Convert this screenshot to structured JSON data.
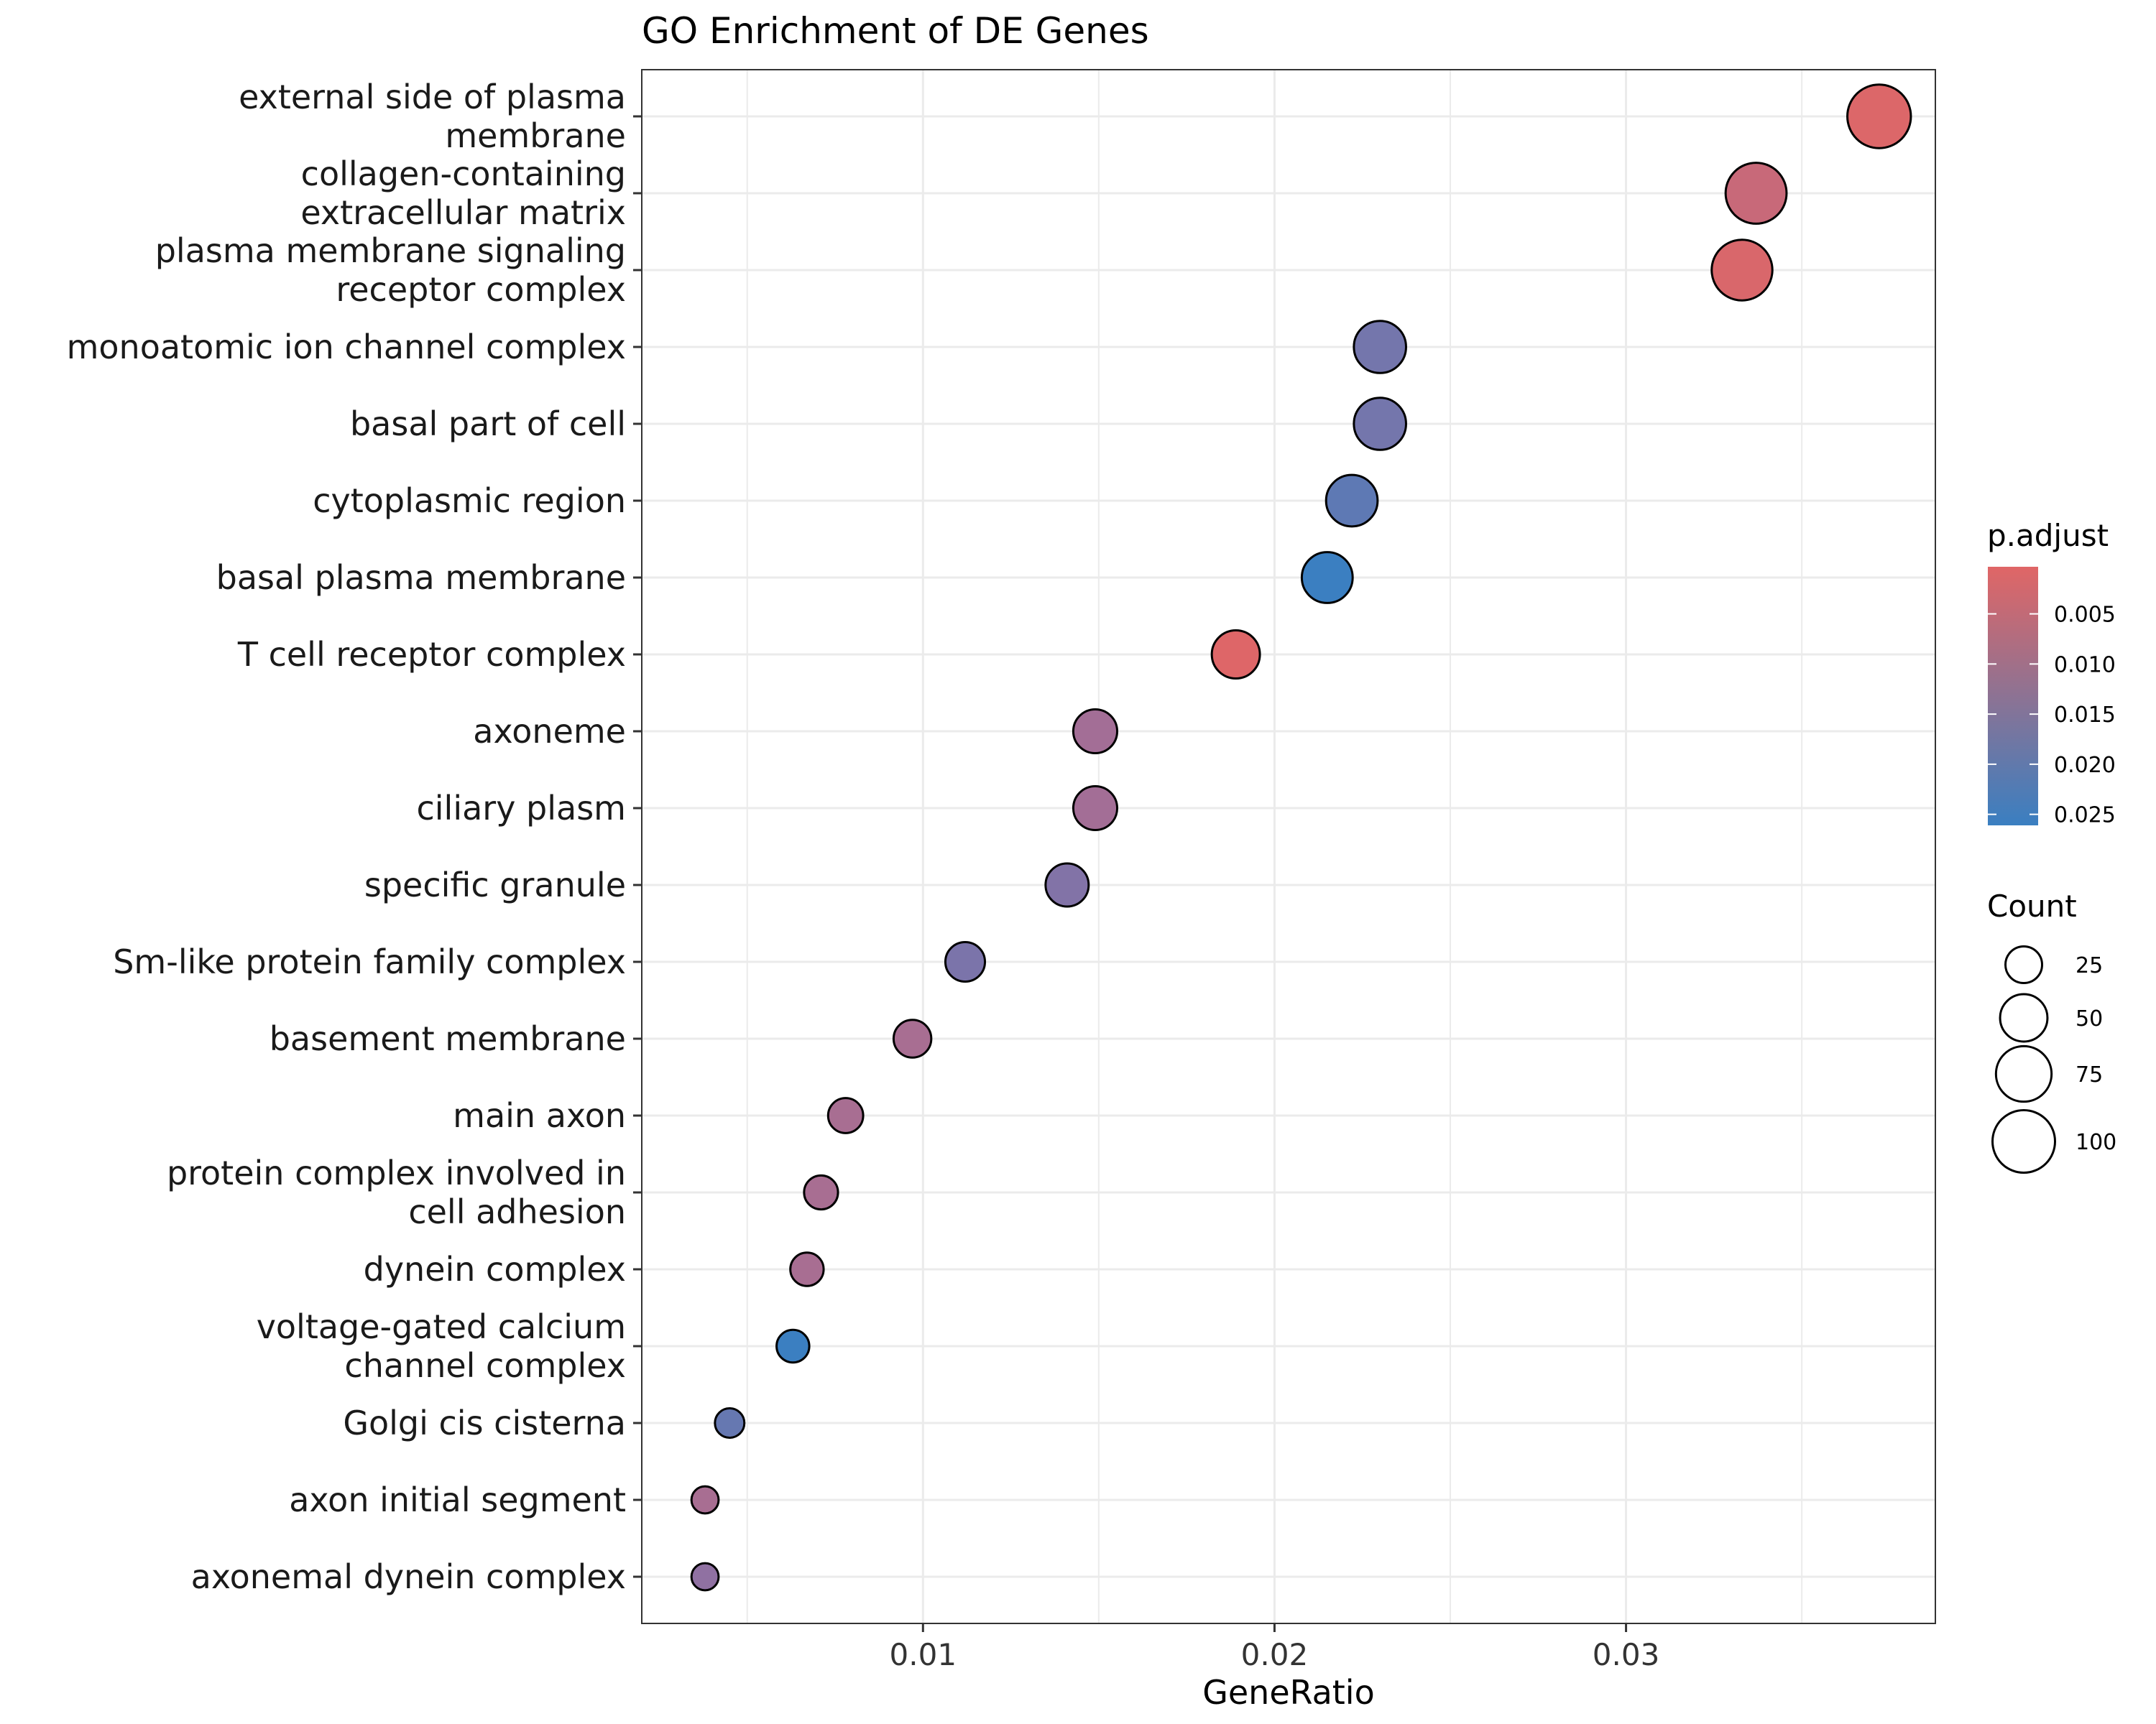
{
  "chart_data": {
    "type": "scatter",
    "title": "GO Enrichment of DE Genes",
    "xlabel": "GeneRatio",
    "ylabel": "",
    "xlim": [
      0.002,
      0.0388
    ],
    "x_ticks": [
      {
        "value": 0.01,
        "label": "0.01"
      },
      {
        "value": 0.02,
        "label": "0.02"
      },
      {
        "value": 0.03,
        "label": "0.03"
      }
    ],
    "grid": true,
    "color_legend": {
      "title": "p.adjust",
      "domain": [
        0.0003,
        0.0261
      ],
      "low_color": "#e06666",
      "high_color": "#3a7fc1",
      "ticks": [
        {
          "value": 0.005,
          "label": "0.005"
        },
        {
          "value": 0.01,
          "label": "0.010"
        },
        {
          "value": 0.015,
          "label": "0.015"
        },
        {
          "value": 0.02,
          "label": "0.020"
        },
        {
          "value": 0.025,
          "label": "0.025"
        }
      ]
    },
    "size_legend": {
      "title": "Count",
      "entries": [
        {
          "value": 25,
          "label": "25"
        },
        {
          "value": 50,
          "label": "50"
        },
        {
          "value": 75,
          "label": "75"
        },
        {
          "value": 100,
          "label": "100"
        }
      ]
    },
    "points": [
      {
        "label": [
          "external side of plasma",
          "membrane"
        ],
        "gene_ratio": 0.0372,
        "count": 104,
        "p_adjust": 0.001
      },
      {
        "label": [
          "collagen-containing",
          "extracellular matrix"
        ],
        "gene_ratio": 0.0337,
        "count": 94,
        "p_adjust": 0.0045
      },
      {
        "label": [
          "plasma membrane signaling",
          "receptor complex"
        ],
        "gene_ratio": 0.0333,
        "count": 93,
        "p_adjust": 0.0015
      },
      {
        "label": [
          "monoatomic ion channel complex"
        ],
        "gene_ratio": 0.023,
        "count": 64,
        "p_adjust": 0.018
      },
      {
        "label": [
          "basal part of cell"
        ],
        "gene_ratio": 0.023,
        "count": 64,
        "p_adjust": 0.018
      },
      {
        "label": [
          "cytoplasmic region"
        ],
        "gene_ratio": 0.0222,
        "count": 62,
        "p_adjust": 0.021
      },
      {
        "label": [
          "basal plasma membrane"
        ],
        "gene_ratio": 0.0215,
        "count": 60,
        "p_adjust": 0.026
      },
      {
        "label": [
          "T cell receptor complex"
        ],
        "gene_ratio": 0.0189,
        "count": 52,
        "p_adjust": 0.0007
      },
      {
        "label": [
          "axoneme"
        ],
        "gene_ratio": 0.0149,
        "count": 41,
        "p_adjust": 0.011
      },
      {
        "label": [
          "ciliary plasm"
        ],
        "gene_ratio": 0.0149,
        "count": 41,
        "p_adjust": 0.011
      },
      {
        "label": [
          "specific granule"
        ],
        "gene_ratio": 0.0141,
        "count": 39,
        "p_adjust": 0.016
      },
      {
        "label": [
          "Sm-like protein family complex"
        ],
        "gene_ratio": 0.0112,
        "count": 31,
        "p_adjust": 0.017
      },
      {
        "label": [
          "basement membrane"
        ],
        "gene_ratio": 0.0097,
        "count": 27,
        "p_adjust": 0.01
      },
      {
        "label": [
          "main axon"
        ],
        "gene_ratio": 0.0078,
        "count": 22,
        "p_adjust": 0.01
      },
      {
        "label": [
          "protein complex involved in",
          "cell adhesion"
        ],
        "gene_ratio": 0.0071,
        "count": 20,
        "p_adjust": 0.01
      },
      {
        "label": [
          "dynein complex"
        ],
        "gene_ratio": 0.0067,
        "count": 19,
        "p_adjust": 0.01
      },
      {
        "label": [
          "voltage-gated calcium",
          "channel complex"
        ],
        "gene_ratio": 0.0063,
        "count": 18,
        "p_adjust": 0.026
      },
      {
        "label": [
          "Golgi cis cisterna"
        ],
        "gene_ratio": 0.0045,
        "count": 13,
        "p_adjust": 0.02
      },
      {
        "label": [
          "axon initial segment"
        ],
        "gene_ratio": 0.0038,
        "count": 10,
        "p_adjust": 0.01
      },
      {
        "label": [
          "axonemal dynein complex"
        ],
        "gene_ratio": 0.0038,
        "count": 10,
        "p_adjust": 0.014
      }
    ]
  }
}
